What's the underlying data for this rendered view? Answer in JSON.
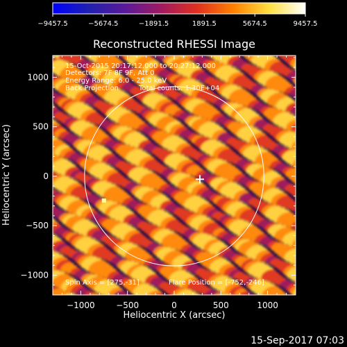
{
  "chart_data": {
    "type": "heatmap",
    "title": "Reconstructed RHESSI Image",
    "xlabel": "Heliocentric X (arcsec)",
    "ylabel": "Heliocentric Y (arcsec)",
    "xlim": [
      -1300,
      1300
    ],
    "ylim": [
      -1200,
      1220
    ],
    "xticks": [
      -1000,
      -500,
      0,
      500,
      1000
    ],
    "yticks": [
      -1000,
      -500,
      0,
      500,
      1000
    ],
    "xtick_labels": [
      "−1000",
      "−500",
      "0",
      "500",
      "1000"
    ],
    "ytick_labels": [
      "−1000",
      "−500",
      "0",
      "500",
      "1000"
    ],
    "colorbar": {
      "range": [
        -9457.5,
        9457.5
      ],
      "tick_labels": [
        "−9457.5",
        "−5674.5",
        "−1891.5",
        "1891.5",
        "5674.5",
        "9457.5"
      ],
      "colors": [
        "#0000ff",
        "#2020b0",
        "#5a1a9a",
        "#a01a60",
        "#e03020",
        "#ff8000",
        "#ffe040",
        "#ffffff"
      ]
    },
    "annotations": [
      "15-Oct-2015 20:17:12.000 to 20:27:12.000",
      "Detectors: 7F 8F 9F, Att 0",
      "Energy Range: 6.0 - 25.0 keV",
      "Back Projection",
      "Total counts: 1.30E+04"
    ],
    "footer_left": "Spin Axis = [275,-31]",
    "footer_right": "Flare Position = [-752,-246]",
    "solar_limb_radius": 960,
    "marker_positions": [
      [
        275,
        -31
      ],
      [
        -752,
        -246
      ]
    ]
  },
  "timestamp": "15-Sep-2017 07:03"
}
